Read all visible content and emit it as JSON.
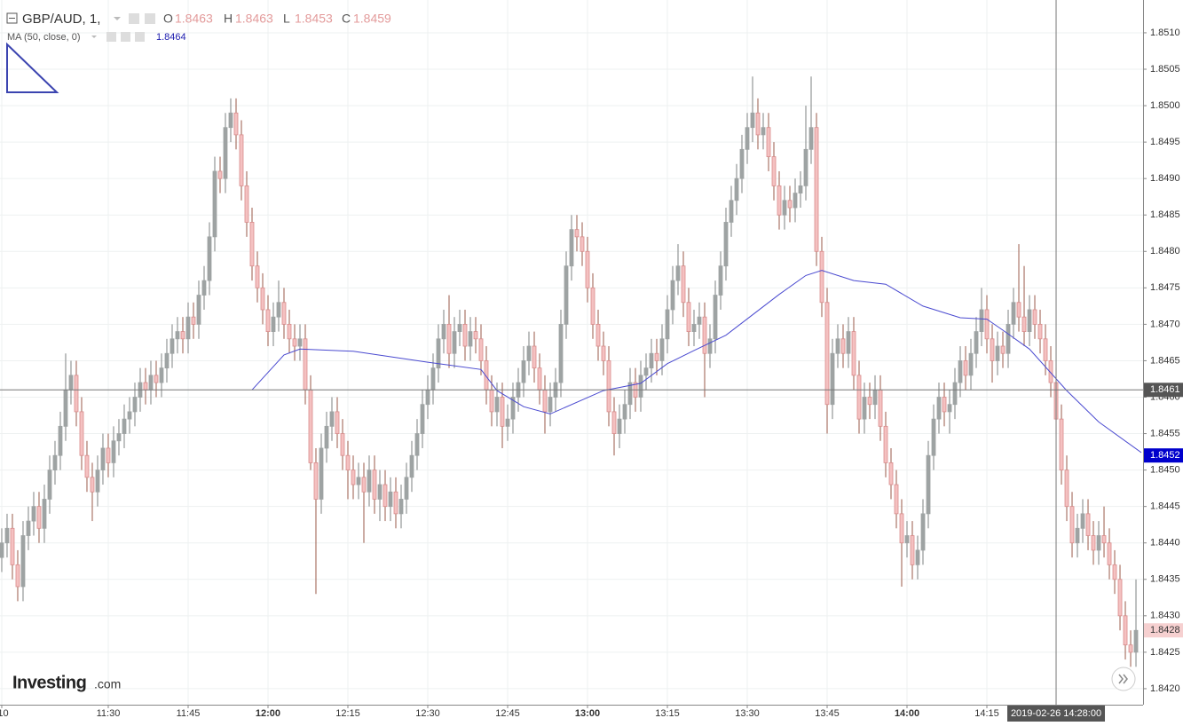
{
  "chart_data": {
    "type": "candlestick",
    "symbol": "GBP/AUD, 1,",
    "ohlc_legend": {
      "open_label": "O",
      "open": 1.8463,
      "high_label": "H",
      "high": 1.8463,
      "low_label": "L",
      "low": 1.8453,
      "close_label": "C",
      "close": 1.8459
    },
    "ma_legend": {
      "label": "MA (50, close, 0)",
      "value": 1.8464
    },
    "logo": {
      "name": "Investing",
      "suffix": ".com"
    },
    "up_color": "#9ea3a3",
    "down_color": "#f4c1c1",
    "down_border": "#d98c8c",
    "ma_color": "#4a4ad0",
    "grid": true,
    "xlim": [
      -0.33,
      214.33
    ],
    "xticks": [
      {
        "value": 0,
        "label": ":10"
      },
      {
        "value": 20,
        "label": "11:30"
      },
      {
        "value": 35,
        "label": "11:45"
      },
      {
        "value": 50,
        "label": "12:00"
      },
      {
        "value": 65,
        "label": "12:15"
      },
      {
        "value": 80,
        "label": "12:30"
      },
      {
        "value": 95,
        "label": "12:45"
      },
      {
        "value": 110,
        "label": "13:00"
      },
      {
        "value": 125,
        "label": "13:15"
      },
      {
        "value": 140,
        "label": "13:30"
      },
      {
        "value": 155,
        "label": "13:45"
      },
      {
        "value": 170,
        "label": "14:00"
      },
      {
        "value": 185,
        "label": "14:15"
      }
    ],
    "ylim": [
      1.84178,
      1.85145
    ],
    "yticks": [
      {
        "value": 1.842,
        "label": "1.8420"
      },
      1.8425,
      {
        "value": 1.843,
        "label": "1.8430"
      },
      1.8435,
      {
        "value": 1.844,
        "label": "1.8440"
      },
      1.8445,
      {
        "value": 1.845,
        "label": "1.8450"
      },
      1.8455,
      {
        "value": 1.846,
        "label": "1.8460"
      },
      1.8465,
      {
        "value": 1.847,
        "label": "1.8470"
      },
      1.8475,
      {
        "value": 1.848,
        "label": "1.8480"
      },
      1.8485,
      {
        "value": 1.849,
        "label": "1.8490"
      },
      1.8495,
      {
        "value": 1.85,
        "label": "1.8500"
      },
      1.8505,
      {
        "value": 1.851,
        "label": "1.8510"
      }
    ],
    "crosshair": {
      "x": 198,
      "label": "2019-02-26 14:28:00",
      "price": 1.8461
    },
    "ma_last": 1.8452,
    "last_price": 1.8428,
    "candles": {
      "open": [
        1.8438,
        1.844,
        1.8442,
        1.8437,
        1.8434,
        1.8441,
        1.8443,
        1.8445,
        1.8442,
        1.8446,
        1.845,
        1.8452,
        1.8456,
        1.8461,
        1.8463,
        1.8458,
        1.8452,
        1.8449,
        1.8447,
        1.845,
        1.8453,
        1.8451,
        1.8454,
        1.8455,
        1.8457,
        1.8458,
        1.846,
        1.8462,
        1.8461,
        1.8463,
        1.8462,
        1.8464,
        1.8466,
        1.8468,
        1.8469,
        1.8468,
        1.8471,
        1.847,
        1.8474,
        1.8476,
        1.8482,
        1.8491,
        1.849,
        1.8497,
        1.8499,
        1.8496,
        1.8489,
        1.8484,
        1.8478,
        1.8475,
        1.8472,
        1.8469,
        1.8471,
        1.8473,
        1.847,
        1.8468,
        1.8467,
        1.8468,
        1.8461,
        1.8451,
        1.8446,
        1.8453,
        1.8456,
        1.8458,
        1.8455,
        1.8452,
        1.845,
        1.8448,
        1.8449,
        1.8447,
        1.845,
        1.8446,
        1.8448,
        1.8445,
        1.8447,
        1.8444,
        1.8446,
        1.8449,
        1.8452,
        1.8455,
        1.8459,
        1.8461,
        1.8464,
        1.8468,
        1.847,
        1.8466,
        1.8469,
        1.847,
        1.8467,
        1.8469,
        1.8468,
        1.8465,
        1.8461,
        1.8458,
        1.846,
        1.8456,
        1.8457,
        1.846,
        1.8462,
        1.8465,
        1.8467,
        1.8464,
        1.8461,
        1.8458,
        1.846,
        1.8462,
        1.847,
        1.8478,
        1.8483,
        1.8482,
        1.848,
        1.8475,
        1.847,
        1.8467,
        1.8465,
        1.8458,
        1.8455,
        1.8457,
        1.8459,
        1.8462,
        1.846,
        1.8463,
        1.8464,
        1.8466,
        1.8465,
        1.8468,
        1.8472,
        1.8476,
        1.8478,
        1.8473,
        1.8469,
        1.847,
        1.8471,
        1.8466,
        1.8468,
        1.8474,
        1.8478,
        1.8484,
        1.8487,
        1.849,
        1.8494,
        1.8497,
        1.8499,
        1.8496,
        1.8497,
        1.8493,
        1.8489,
        1.8485,
        1.8487,
        1.8486,
        1.8488,
        1.8489,
        1.8494,
        1.8497,
        1.848,
        1.8473,
        1.8459,
        1.8466,
        1.8468,
        1.8466,
        1.8469,
        1.8463,
        1.8457,
        1.846,
        1.8459,
        1.8461,
        1.8456,
        1.8451,
        1.8448,
        1.8444,
        1.844,
        1.8441,
        1.8437,
        1.8439,
        1.8444,
        1.8452,
        1.8457,
        1.846,
        1.8458,
        1.8459,
        1.8462,
        1.8465,
        1.8463,
        1.8466,
        1.8469,
        1.8472,
        1.8468,
        1.8465,
        1.8467,
        1.8466,
        1.847,
        1.8473,
        1.8471,
        1.8469,
        1.8472,
        1.847,
        1.8468,
        1.8465,
        1.8462,
        1.8457,
        1.845,
        1.8445,
        1.844,
        1.8442,
        1.8444,
        1.8441,
        1.8439,
        1.8441,
        1.844,
        1.8437,
        1.8435,
        1.843,
        1.8426,
        1.8425
      ],
      "high": [
        1.8442,
        1.8444,
        1.8444,
        1.8439,
        1.8443,
        1.8445,
        1.8447,
        1.8447,
        1.8448,
        1.8452,
        1.8454,
        1.8458,
        1.8466,
        1.8465,
        1.8465,
        1.846,
        1.8454,
        1.8451,
        1.8452,
        1.8455,
        1.8455,
        1.8456,
        1.8457,
        1.8459,
        1.846,
        1.8462,
        1.8464,
        1.8464,
        1.8465,
        1.8465,
        1.8466,
        1.8468,
        1.847,
        1.8471,
        1.8471,
        1.8473,
        1.8473,
        1.8476,
        1.8478,
        1.8484,
        1.8493,
        1.8493,
        1.8499,
        1.8501,
        1.8501,
        1.8498,
        1.8491,
        1.8486,
        1.848,
        1.8477,
        1.8474,
        1.8473,
        1.8476,
        1.8475,
        1.8472,
        1.847,
        1.847,
        1.847,
        1.8463,
        1.8453,
        1.8455,
        1.8458,
        1.846,
        1.846,
        1.8457,
        1.8454,
        1.8452,
        1.8451,
        1.8451,
        1.8452,
        1.8452,
        1.845,
        1.845,
        1.8449,
        1.8449,
        1.8448,
        1.8451,
        1.8454,
        1.8457,
        1.8461,
        1.8463,
        1.8466,
        1.847,
        1.8472,
        1.8474,
        1.8471,
        1.8472,
        1.8472,
        1.8471,
        1.8471,
        1.847,
        1.8467,
        1.8463,
        1.8462,
        1.8462,
        1.8459,
        1.8462,
        1.8464,
        1.8467,
        1.8469,
        1.8469,
        1.8466,
        1.8463,
        1.8462,
        1.8464,
        1.8472,
        1.848,
        1.8485,
        1.8485,
        1.8484,
        1.8482,
        1.8477,
        1.8472,
        1.8469,
        1.8467,
        1.846,
        1.8459,
        1.8461,
        1.8464,
        1.8464,
        1.8465,
        1.8466,
        1.8468,
        1.8468,
        1.847,
        1.8474,
        1.8478,
        1.8481,
        1.848,
        1.8475,
        1.8472,
        1.8473,
        1.8473,
        1.847,
        1.8476,
        1.848,
        1.8486,
        1.8489,
        1.8492,
        1.8496,
        1.8499,
        1.8504,
        1.8501,
        1.8499,
        1.8499,
        1.8495,
        1.8491,
        1.8489,
        1.8489,
        1.849,
        1.8491,
        1.85,
        1.8504,
        1.8499,
        1.8482,
        1.8475,
        1.8468,
        1.847,
        1.847,
        1.8471,
        1.8471,
        1.8465,
        1.8462,
        1.8462,
        1.8463,
        1.8463,
        1.8458,
        1.8453,
        1.845,
        1.8446,
        1.8443,
        1.8443,
        1.8441,
        1.8446,
        1.8454,
        1.8459,
        1.8462,
        1.8462,
        1.8461,
        1.8464,
        1.8467,
        1.8467,
        1.8468,
        1.8471,
        1.8475,
        1.8474,
        1.847,
        1.8469,
        1.8469,
        1.8472,
        1.8475,
        1.8481,
        1.8478,
        1.8474,
        1.8474,
        1.8472,
        1.847,
        1.8467,
        1.8464,
        1.8459,
        1.8452,
        1.8447,
        1.8444,
        1.8446,
        1.8446,
        1.8443,
        1.8443,
        1.8445,
        1.8442,
        1.8439,
        1.8437,
        1.8432,
        1.8428,
        1.8435
      ],
      "low": [
        1.8436,
        1.8438,
        1.8435,
        1.8432,
        1.8432,
        1.8439,
        1.8441,
        1.844,
        1.844,
        1.8444,
        1.8448,
        1.845,
        1.8454,
        1.8459,
        1.8456,
        1.845,
        1.8447,
        1.8443,
        1.8445,
        1.8448,
        1.8449,
        1.8449,
        1.8452,
        1.8453,
        1.8455,
        1.8456,
        1.8458,
        1.8459,
        1.8459,
        1.846,
        1.846,
        1.8462,
        1.8464,
        1.8466,
        1.8466,
        1.8466,
        1.8468,
        1.8468,
        1.8472,
        1.8474,
        1.848,
        1.8488,
        1.8488,
        1.8495,
        1.8494,
        1.8487,
        1.8482,
        1.8476,
        1.8473,
        1.847,
        1.8467,
        1.8467,
        1.8469,
        1.8468,
        1.8466,
        1.8465,
        1.8465,
        1.8459,
        1.845,
        1.8433,
        1.8444,
        1.8451,
        1.8454,
        1.8453,
        1.845,
        1.8446,
        1.8446,
        1.8446,
        1.844,
        1.8445,
        1.8444,
        1.8443,
        1.8443,
        1.8443,
        1.8442,
        1.8442,
        1.8444,
        1.8447,
        1.845,
        1.8453,
        1.8457,
        1.8459,
        1.8462,
        1.8466,
        1.8464,
        1.8464,
        1.8467,
        1.8465,
        1.8465,
        1.8466,
        1.8463,
        1.8459,
        1.8456,
        1.8456,
        1.8453,
        1.8454,
        1.8455,
        1.8458,
        1.846,
        1.8463,
        1.8462,
        1.8459,
        1.8455,
        1.8456,
        1.8458,
        1.846,
        1.8468,
        1.8476,
        1.848,
        1.8478,
        1.8473,
        1.8468,
        1.8465,
        1.8463,
        1.8456,
        1.8452,
        1.8453,
        1.8455,
        1.8457,
        1.8458,
        1.8458,
        1.8461,
        1.8462,
        1.8463,
        1.8463,
        1.8466,
        1.847,
        1.8474,
        1.8471,
        1.8467,
        1.8467,
        1.8468,
        1.846,
        1.8464,
        1.8466,
        1.8472,
        1.8476,
        1.8482,
        1.8485,
        1.8488,
        1.8492,
        1.8495,
        1.8494,
        1.8494,
        1.8491,
        1.8487,
        1.8483,
        1.8483,
        1.8484,
        1.8484,
        1.8486,
        1.8487,
        1.8492,
        1.8478,
        1.8471,
        1.8455,
        1.8457,
        1.8464,
        1.8464,
        1.8464,
        1.8461,
        1.8455,
        1.8455,
        1.8457,
        1.8457,
        1.8454,
        1.8449,
        1.8446,
        1.8442,
        1.8434,
        1.8438,
        1.8435,
        1.8435,
        1.8437,
        1.8442,
        1.845,
        1.8455,
        1.8456,
        1.8455,
        1.8457,
        1.846,
        1.8461,
        1.8461,
        1.8464,
        1.8467,
        1.8466,
        1.8462,
        1.8463,
        1.8464,
        1.8464,
        1.8468,
        1.8469,
        1.8467,
        1.8467,
        1.8468,
        1.8466,
        1.8463,
        1.846,
        1.8455,
        1.8448,
        1.8443,
        1.8438,
        1.8438,
        1.844,
        1.8439,
        1.8437,
        1.8437,
        1.8438,
        1.8435,
        1.8433,
        1.8428,
        1.8424,
        1.8423,
        1.8423
      ],
      "close": [
        1.844,
        1.8442,
        1.8437,
        1.8434,
        1.8441,
        1.8443,
        1.8445,
        1.8442,
        1.8446,
        1.845,
        1.8452,
        1.8456,
        1.8461,
        1.8463,
        1.8458,
        1.8452,
        1.8449,
        1.8447,
        1.845,
        1.8453,
        1.8451,
        1.8454,
        1.8455,
        1.8457,
        1.8458,
        1.846,
        1.8462,
        1.8461,
        1.8463,
        1.8462,
        1.8464,
        1.8466,
        1.8468,
        1.8469,
        1.8468,
        1.8471,
        1.847,
        1.8474,
        1.8476,
        1.8482,
        1.8491,
        1.849,
        1.8497,
        1.8499,
        1.8496,
        1.8489,
        1.8484,
        1.8478,
        1.8475,
        1.8472,
        1.8469,
        1.8471,
        1.8473,
        1.847,
        1.8468,
        1.8467,
        1.8468,
        1.8461,
        1.8451,
        1.8446,
        1.8453,
        1.8456,
        1.8458,
        1.8455,
        1.8452,
        1.845,
        1.8448,
        1.8449,
        1.8447,
        1.845,
        1.8446,
        1.8448,
        1.8445,
        1.8447,
        1.8444,
        1.8446,
        1.8449,
        1.8452,
        1.8455,
        1.8459,
        1.8461,
        1.8464,
        1.8468,
        1.847,
        1.8466,
        1.8469,
        1.847,
        1.8467,
        1.8469,
        1.8468,
        1.8465,
        1.8461,
        1.8458,
        1.846,
        1.8456,
        1.8457,
        1.846,
        1.8462,
        1.8465,
        1.8467,
        1.8464,
        1.8461,
        1.8458,
        1.846,
        1.8462,
        1.847,
        1.8478,
        1.8483,
        1.8482,
        1.848,
        1.8475,
        1.847,
        1.8467,
        1.8465,
        1.8458,
        1.8455,
        1.8457,
        1.8459,
        1.8462,
        1.846,
        1.8463,
        1.8464,
        1.8466,
        1.8465,
        1.8468,
        1.8472,
        1.8476,
        1.8478,
        1.8473,
        1.8469,
        1.847,
        1.8471,
        1.8466,
        1.8468,
        1.8474,
        1.8478,
        1.8484,
        1.8487,
        1.849,
        1.8494,
        1.8497,
        1.8499,
        1.8496,
        1.8497,
        1.8493,
        1.8489,
        1.8485,
        1.8487,
        1.8486,
        1.8488,
        1.8489,
        1.8494,
        1.8497,
        1.848,
        1.8473,
        1.8459,
        1.8466,
        1.8468,
        1.8466,
        1.8469,
        1.8463,
        1.8457,
        1.846,
        1.8459,
        1.8461,
        1.8456,
        1.8451,
        1.8448,
        1.8444,
        1.844,
        1.8441,
        1.8437,
        1.8439,
        1.8444,
        1.8452,
        1.8457,
        1.846,
        1.8458,
        1.8459,
        1.8462,
        1.8465,
        1.8463,
        1.8466,
        1.8469,
        1.8472,
        1.8468,
        1.8465,
        1.8467,
        1.8466,
        1.847,
        1.8473,
        1.8471,
        1.8469,
        1.8472,
        1.847,
        1.8468,
        1.8465,
        1.8462,
        1.8457,
        1.845,
        1.8445,
        1.844,
        1.8442,
        1.8444,
        1.8441,
        1.8439,
        1.8441,
        1.844,
        1.8437,
        1.8435,
        1.843,
        1.8426,
        1.8425,
        1.8428
      ]
    },
    "ma": {
      "x": [
        47,
        53,
        56,
        66,
        80,
        90,
        93,
        98,
        103,
        113,
        120,
        125,
        130,
        136,
        141,
        146,
        151,
        154,
        160,
        166,
        173,
        180,
        185,
        188,
        193,
        200,
        206,
        214
      ],
      "values": [
        1.8461,
        1.84658,
        1.84666,
        1.84663,
        1.84648,
        1.84638,
        1.84609,
        1.84587,
        1.84577,
        1.84609,
        1.84619,
        1.84646,
        1.84664,
        1.84685,
        1.84713,
        1.84741,
        1.84767,
        1.84774,
        1.8476,
        1.84755,
        1.84725,
        1.84709,
        1.84707,
        1.84692,
        1.84666,
        1.84609,
        1.84566,
        1.84524
      ]
    }
  }
}
